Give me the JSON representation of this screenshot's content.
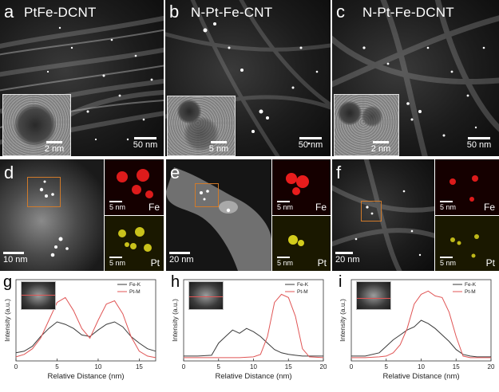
{
  "panels_top": [
    {
      "label": "a",
      "title": "PtFe-DCNT",
      "scale_main": "50 nm",
      "scale_inset": "2 nm"
    },
    {
      "label": "b",
      "title": "N-Pt-Fe-CNT",
      "scale_main": "50 nm",
      "scale_inset": "5 nm"
    },
    {
      "label": "c",
      "title": "N-Pt-Fe-DCNT",
      "scale_main": "50 nm",
      "scale_inset": "2 nm"
    }
  ],
  "panels_mid": [
    {
      "label": "d",
      "scale_main": "10 nm",
      "map_scale_fe": "5 nm",
      "map_scale_pt": "5 nm",
      "fe": "Fe",
      "pt": "Pt"
    },
    {
      "label": "e",
      "scale_main": "20 nm",
      "map_scale_fe": "5 nm",
      "map_scale_pt": "5 nm",
      "fe": "Fe",
      "pt": "Pt"
    },
    {
      "label": "f",
      "scale_main": "20 nm",
      "map_scale_fe": "5 nm",
      "map_scale_pt": "5 nm",
      "fe": "Fe",
      "pt": "Pt"
    }
  ],
  "colors": {
    "fe_line": "#3a3a3a",
    "pt_line": "#e05555",
    "fe_map": "#ff2020",
    "pt_map": "#e8e020",
    "roi": "#d07a2a"
  },
  "chart_data": [
    {
      "type": "line",
      "label": "g",
      "xlabel": "Relative Distance (nm)",
      "ylabel": "Intensity (a.u.)",
      "xlim": [
        0,
        17
      ],
      "xticks": [
        0,
        5,
        10,
        15
      ],
      "legend": [
        "Fe-K",
        "Pt-M"
      ],
      "series": [
        {
          "name": "Fe-K",
          "x": [
            0,
            1,
            2,
            3,
            4,
            5,
            6,
            7,
            8,
            9,
            10,
            11,
            12,
            13,
            14,
            15,
            16,
            17
          ],
          "y": [
            0.1,
            0.12,
            0.18,
            0.3,
            0.4,
            0.48,
            0.45,
            0.4,
            0.32,
            0.3,
            0.38,
            0.45,
            0.48,
            0.42,
            0.3,
            0.22,
            0.15,
            0.12
          ]
        },
        {
          "name": "Pt-M",
          "x": [
            0,
            1,
            2,
            3,
            4,
            5,
            6,
            7,
            8,
            9,
            10,
            11,
            12,
            13,
            14,
            15,
            16,
            17
          ],
          "y": [
            0.05,
            0.08,
            0.15,
            0.28,
            0.5,
            0.72,
            0.78,
            0.62,
            0.4,
            0.28,
            0.5,
            0.7,
            0.74,
            0.58,
            0.3,
            0.12,
            0.06,
            0.04
          ]
        }
      ]
    },
    {
      "type": "line",
      "label": "h",
      "xlabel": "Relative Distance (nm)",
      "ylabel": "Intensity (a.u.)",
      "xlim": [
        0,
        20
      ],
      "xticks": [
        0,
        5,
        10,
        15,
        20
      ],
      "legend": [
        "Fe-K",
        "Pt-M"
      ],
      "series": [
        {
          "name": "Fe-K",
          "x": [
            0,
            2,
            4,
            5,
            6,
            7,
            8,
            9,
            10,
            11,
            12,
            13,
            14,
            15,
            16,
            17,
            18,
            20
          ],
          "y": [
            0.06,
            0.06,
            0.07,
            0.22,
            0.3,
            0.38,
            0.34,
            0.4,
            0.36,
            0.3,
            0.22,
            0.14,
            0.1,
            0.08,
            0.07,
            0.06,
            0.06,
            0.06
          ]
        },
        {
          "name": "Pt-M",
          "x": [
            0,
            2,
            4,
            5,
            6,
            8,
            10,
            11,
            12,
            13,
            14,
            15,
            16,
            17,
            18,
            20
          ],
          "y": [
            0.04,
            0.04,
            0.04,
            0.04,
            0.04,
            0.04,
            0.05,
            0.08,
            0.3,
            0.72,
            0.82,
            0.78,
            0.55,
            0.15,
            0.05,
            0.04
          ]
        }
      ]
    },
    {
      "type": "line",
      "label": "i",
      "xlabel": "Relative Distance (nm)",
      "ylabel": "Intensity (a.u.)",
      "xlim": [
        0,
        20
      ],
      "xticks": [
        0,
        5,
        10,
        15,
        20
      ],
      "legend": [
        "Fe-K",
        "Pt-M"
      ],
      "series": [
        {
          "name": "Fe-K",
          "x": [
            0,
            2,
            4,
            5,
            6,
            7,
            8,
            9,
            10,
            11,
            12,
            13,
            14,
            15,
            16,
            17,
            18,
            20
          ],
          "y": [
            0.06,
            0.06,
            0.1,
            0.18,
            0.26,
            0.32,
            0.38,
            0.42,
            0.5,
            0.46,
            0.4,
            0.32,
            0.24,
            0.14,
            0.08,
            0.06,
            0.05,
            0.05
          ]
        },
        {
          "name": "Pt-M",
          "x": [
            0,
            2,
            4,
            5,
            6,
            7,
            8,
            9,
            10,
            11,
            12,
            13,
            14,
            15,
            16,
            17,
            18,
            20
          ],
          "y": [
            0.04,
            0.04,
            0.05,
            0.06,
            0.1,
            0.2,
            0.4,
            0.7,
            0.82,
            0.86,
            0.8,
            0.78,
            0.6,
            0.3,
            0.06,
            0.04,
            0.04,
            0.04
          ]
        }
      ]
    }
  ]
}
